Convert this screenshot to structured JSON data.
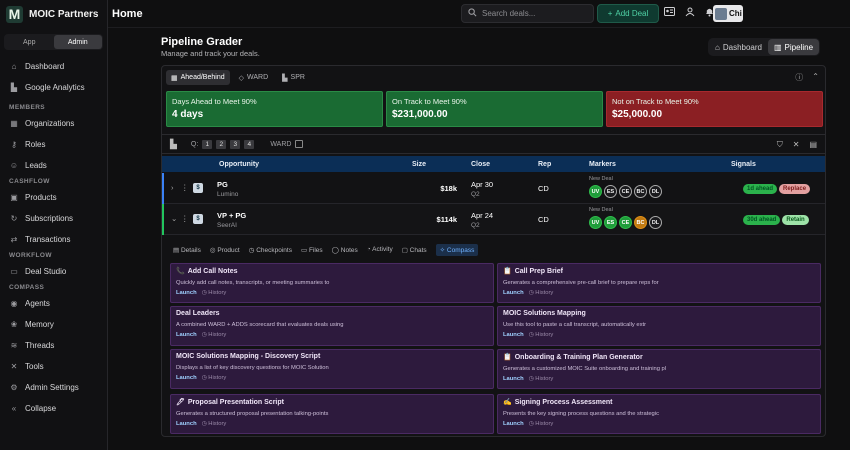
{
  "brand": {
    "name": "MOIC Partners",
    "logo_letter": "M"
  },
  "sidebar": {
    "modes": [
      "App",
      "Admin"
    ],
    "active_mode": "Admin",
    "sections": [
      {
        "title": "",
        "items": [
          {
            "label": "Dashboard",
            "icon": "home-icon"
          },
          {
            "label": "Google Analytics",
            "icon": "bar-chart-icon"
          }
        ]
      },
      {
        "title": "MEMBERS",
        "items": [
          {
            "label": "Organizations",
            "icon": "building-icon"
          },
          {
            "label": "Roles",
            "icon": "key-icon"
          },
          {
            "label": "Leads",
            "icon": "users-icon"
          }
        ]
      },
      {
        "title": "CASHFLOW",
        "items": [
          {
            "label": "Products",
            "icon": "box-icon"
          },
          {
            "label": "Subscriptions",
            "icon": "refresh-icon"
          },
          {
            "label": "Transactions",
            "icon": "swap-icon"
          }
        ]
      },
      {
        "title": "WORKFLOW",
        "items": [
          {
            "label": "Deal Studio",
            "icon": "folder-icon"
          }
        ]
      },
      {
        "title": "COMPASS",
        "items": [
          {
            "label": "Agents",
            "icon": "agent-icon"
          },
          {
            "label": "Memory",
            "icon": "brain-icon"
          },
          {
            "label": "Threads",
            "icon": "threads-icon"
          },
          {
            "label": "Tools",
            "icon": "tools-icon"
          }
        ]
      },
      {
        "title": "",
        "items": [
          {
            "label": "Admin Settings",
            "icon": "gear-icon"
          },
          {
            "label": "Collapse",
            "icon": "collapse-icon"
          }
        ]
      }
    ]
  },
  "topbar": {
    "title": "Home",
    "search_placeholder": "Search deals...",
    "add_deal": "Add Deal",
    "user": "Chi"
  },
  "page": {
    "title": "Pipeline Grader",
    "subtitle": "Manage and track your deals.",
    "views": [
      "Dashboard",
      "Pipeline"
    ],
    "active_view": "Pipeline"
  },
  "panel_tabs": [
    "Ahead/Behind",
    "WARD",
    "SPR"
  ],
  "cards": [
    {
      "label": "Days Ahead to Meet 90%",
      "value": "4 days",
      "color": "#1a6b33"
    },
    {
      "label": "On Track to Meet 90%",
      "value": "$231,000.00",
      "color": "#1a6b33"
    },
    {
      "label": "Not on Track to Meet 90%",
      "value": "$25,000.00",
      "color": "#8b1f23"
    }
  ],
  "filters": {
    "q_label": "Q:",
    "quarters": [
      "1",
      "2",
      "3",
      "4"
    ],
    "ward_label": "WARD"
  },
  "columns": [
    "Opportunity",
    "Size",
    "Close",
    "Rep",
    "Markers",
    "Signals"
  ],
  "deals": [
    {
      "name": "PG",
      "company": "Lumino",
      "size": "$18k",
      "close_date": "Apr 30",
      "close_q": "Q2",
      "rep": "CD",
      "marker_title": "New Deal",
      "markers": [
        "UV",
        "ES",
        "CE",
        "BC",
        "DL"
      ],
      "signal": "1d ahead",
      "signal2": "Replace",
      "bar": "#3b82f6"
    },
    {
      "name": "VP + PG",
      "company": "SeerAI",
      "size": "$114k",
      "close_date": "Apr 24",
      "close_q": "Q2",
      "rep": "CD",
      "marker_title": "New Deal",
      "markers": [
        "UV",
        "ES",
        "CE",
        "BC",
        "DL"
      ],
      "signal": "30d ahead",
      "signal2": "Retain",
      "bar": "#22c55e"
    }
  ],
  "detail_tabs": [
    "Details",
    "Product",
    "Checkpoints",
    "Files",
    "Notes",
    "Activity",
    "Chats",
    "Compass"
  ],
  "active_detail_tab": "Compass",
  "tools": [
    {
      "title": "Add Call Notes",
      "desc": "Quickly add call notes, transcripts, or meeting summaries to",
      "icon": "phone-icon"
    },
    {
      "title": "Call Prep Brief",
      "desc": "Generates a comprehensive pre-call brief to prepare reps for",
      "icon": "clipboard-icon"
    },
    {
      "title": "Deal Leaders",
      "desc": "A combined WARD + ADDS scorecard that evaluates deals using",
      "icon": ""
    },
    {
      "title": "MOIC Solutions Mapping",
      "desc": "Use this tool to paste a call transcript, automatically extr",
      "icon": ""
    },
    {
      "title": "MOIC Solutions Mapping - Discovery Script",
      "desc": "Displays a list of key discovery questions for MOIC Solution",
      "icon": ""
    },
    {
      "title": "Onboarding & Training Plan Generator",
      "desc": "Generates a customized MOIC Suite onboarding and training pl",
      "icon": "clipboard-icon"
    },
    {
      "title": "Proposal Presentation Script",
      "desc": "Generates a structured proposal presentation talking-points",
      "icon": "pen-icon"
    },
    {
      "title": "Signing Process Assessment",
      "desc": "Presents the key signing process questions and the strategic",
      "icon": "sign-icon"
    }
  ],
  "tool_actions": {
    "launch": "Launch",
    "history": "History"
  }
}
